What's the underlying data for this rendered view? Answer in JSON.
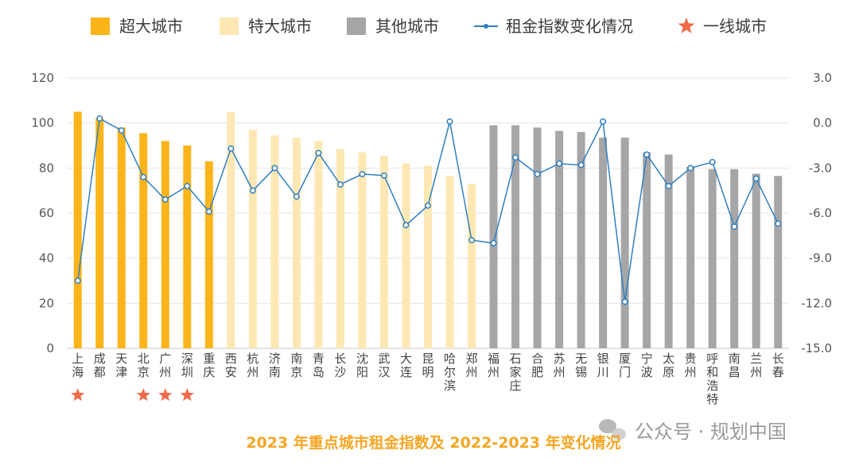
{
  "chart_data": {
    "type": "bar",
    "title": "2023 年重点城市租金指数及 2022-2023 年变化情况",
    "watermark": "公众号 · 规划中国",
    "categories": [
      "上海",
      "成都",
      "天津",
      "北京",
      "广州",
      "深圳",
      "重庆",
      "西安",
      "杭州",
      "济南",
      "南京",
      "青岛",
      "长沙",
      "沈阳",
      "武汉",
      "大连",
      "昆明",
      "哈尔滨",
      "郑州",
      "福州",
      "石家庄",
      "合肥",
      "苏州",
      "无锡",
      "银川",
      "厦门",
      "宁波",
      "太原",
      "贵州",
      "呼和浩特",
      "南昌",
      "兰州",
      "长春"
    ],
    "city_group": [
      "super",
      "super",
      "super",
      "super",
      "super",
      "super",
      "super",
      "mega",
      "mega",
      "mega",
      "mega",
      "mega",
      "mega",
      "mega",
      "mega",
      "mega",
      "mega",
      "mega",
      "mega",
      "other",
      "other",
      "other",
      "other",
      "other",
      "other",
      "other",
      "other",
      "other",
      "other",
      "other",
      "other",
      "other",
      "other"
    ],
    "tier1_cities": [
      "上海",
      "北京",
      "广州",
      "深圳"
    ],
    "series": [
      {
        "name": "租金指数",
        "axis": "left",
        "values": [
          105,
          102,
          98,
          95.5,
          92,
          90,
          83,
          105,
          97,
          94.5,
          93.5,
          92,
          88.5,
          87,
          85.5,
          82,
          81,
          76.5,
          73,
          99,
          99,
          98,
          96.5,
          96,
          93.5,
          93.5,
          87,
          86,
          80.5,
          79.5,
          79.5,
          77.5,
          76.5
        ]
      },
      {
        "name": "租金指数变化情况",
        "axis": "right",
        "values": [
          -10.5,
          0.3,
          -0.5,
          -3.6,
          -5.1,
          -4.2,
          -5.9,
          -1.7,
          -4.5,
          -3.0,
          -4.9,
          -2.0,
          -4.1,
          -3.4,
          -3.5,
          -6.8,
          -5.5,
          0.1,
          -7.8,
          -8.0,
          -2.3,
          -3.4,
          -2.7,
          -2.8,
          0.1,
          -11.9,
          -2.1,
          -4.2,
          -3.0,
          -2.6,
          -6.9,
          -3.7,
          -6.7
        ]
      }
    ],
    "legend": [
      {
        "label": "超大城市",
        "kind": "bar",
        "color": "#fbb41a"
      },
      {
        "label": "特大城市",
        "kind": "bar",
        "color": "#fde8b4"
      },
      {
        "label": "其他城市",
        "kind": "bar",
        "color": "#a6a6a8"
      },
      {
        "label": "租金指数变化情况",
        "kind": "line",
        "color": "#2f7fc1"
      },
      {
        "label": "一线城市",
        "kind": "star",
        "color": "#ef6b4a"
      }
    ],
    "yleft": {
      "lim": [
        0,
        120
      ],
      "ticks": [
        "0",
        "20",
        "40",
        "60",
        "80",
        "100",
        "120"
      ]
    },
    "yright": {
      "lim": [
        -15,
        3
      ],
      "ticks": [
        "-15.0",
        "-12.0",
        "-9.0",
        "-6.0",
        "-3.0",
        "0.0",
        "3.0"
      ]
    },
    "grid": true,
    "legend_position": "top"
  }
}
